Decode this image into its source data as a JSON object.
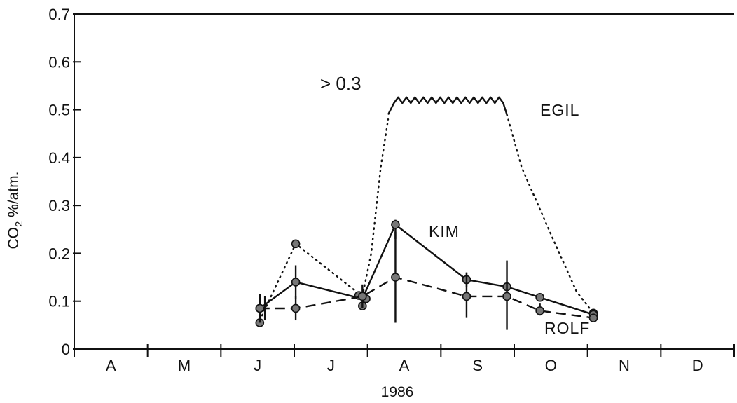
{
  "chart_data": {
    "type": "line",
    "title": "",
    "xlabel": "1986",
    "ylabel": {
      "main": "CO",
      "sub": "2",
      "rest": " %/atm."
    },
    "ylim": [
      0,
      0.7
    ],
    "yticks": [
      "0",
      "0.1",
      "0.2",
      "0.3",
      "0.4",
      "0.5",
      "0.6",
      "0.7"
    ],
    "x_unit": "month index (0 = start of April 1986)",
    "xlim": [
      0,
      9
    ],
    "months": [
      "A",
      "M",
      "J",
      "J",
      "A",
      "S",
      "O",
      "N",
      "D"
    ],
    "annotation": "> 0.3",
    "series": [
      {
        "name": "EGIL",
        "style": "dotted",
        "segments": [
          {
            "style": "dotted",
            "x": [
              2.53,
              3.02,
              3.93
            ],
            "y": [
              0.06,
              0.22,
              0.11
            ]
          },
          {
            "style": "dotted",
            "x": [
              3.93,
              4.05,
              4.18,
              4.28
            ],
            "y": [
              0.11,
              0.2,
              0.38,
              0.48
            ]
          },
          {
            "style": "jagged",
            "x": [
              4.28,
              4.36,
              5.85,
              5.9
            ],
            "y": [
              0.49,
              0.52,
              0.52,
              0.49
            ]
          },
          {
            "style": "dotted",
            "x": [
              5.9,
              6.1,
              6.5,
              6.85,
              7.08
            ],
            "y": [
              0.49,
              0.38,
              0.24,
              0.12,
              0.075
            ]
          }
        ],
        "points": {
          "x": [
            2.53,
            3.02,
            3.93,
            7.08
          ],
          "y": [
            0.055,
            0.22,
            0.09,
            0.075
          ]
        }
      },
      {
        "name": "KIM",
        "style": "solid",
        "x": [
          2.53,
          3.02,
          3.93,
          4.38,
          5.35,
          5.9,
          6.35,
          7.08
        ],
        "y": [
          0.085,
          0.14,
          0.105,
          0.26,
          0.145,
          0.13,
          0.108,
          0.072
        ],
        "points": {
          "x": [
            2.53,
            3.02,
            3.88,
            3.98,
            4.38,
            5.35,
            5.9,
            6.35,
            7.08
          ],
          "y": [
            0.085,
            0.14,
            0.112,
            0.105,
            0.26,
            0.145,
            0.13,
            0.108,
            0.072
          ]
        },
        "error_bars": [
          {
            "x": 2.53,
            "low": 0.055,
            "high": 0.115
          },
          {
            "x": 3.02,
            "low": 0.105,
            "high": 0.175
          },
          {
            "x": 3.93,
            "low": 0.085,
            "high": 0.135
          },
          {
            "x": 4.38,
            "low": 0.23,
            "high": 0.27
          },
          {
            "x": 5.35,
            "low": 0.13,
            "high": 0.16
          }
        ]
      },
      {
        "name": "ROLF",
        "style": "dashed",
        "x": [
          2.53,
          3.02,
          3.93,
          4.38,
          5.35,
          5.9,
          6.35,
          7.08
        ],
        "y": [
          0.085,
          0.085,
          0.11,
          0.15,
          0.11,
          0.11,
          0.08,
          0.065
        ],
        "points": {
          "x": [
            2.53,
            3.02,
            3.93,
            4.38,
            5.35,
            5.9,
            6.35,
            7.08
          ],
          "y": [
            0.085,
            0.085,
            0.11,
            0.15,
            0.11,
            0.11,
            0.08,
            0.065
          ]
        },
        "error_bars": [
          {
            "x": 2.6,
            "low": 0.06,
            "high": 0.11
          },
          {
            "x": 3.02,
            "low": 0.06,
            "high": 0.11
          },
          {
            "x": 4.38,
            "low": 0.055,
            "high": 0.245
          },
          {
            "x": 5.35,
            "low": 0.065,
            "high": 0.16
          },
          {
            "x": 5.9,
            "low": 0.04,
            "high": 0.185
          },
          {
            "x": 6.35,
            "low": 0.07,
            "high": 0.095
          }
        ]
      }
    ]
  }
}
